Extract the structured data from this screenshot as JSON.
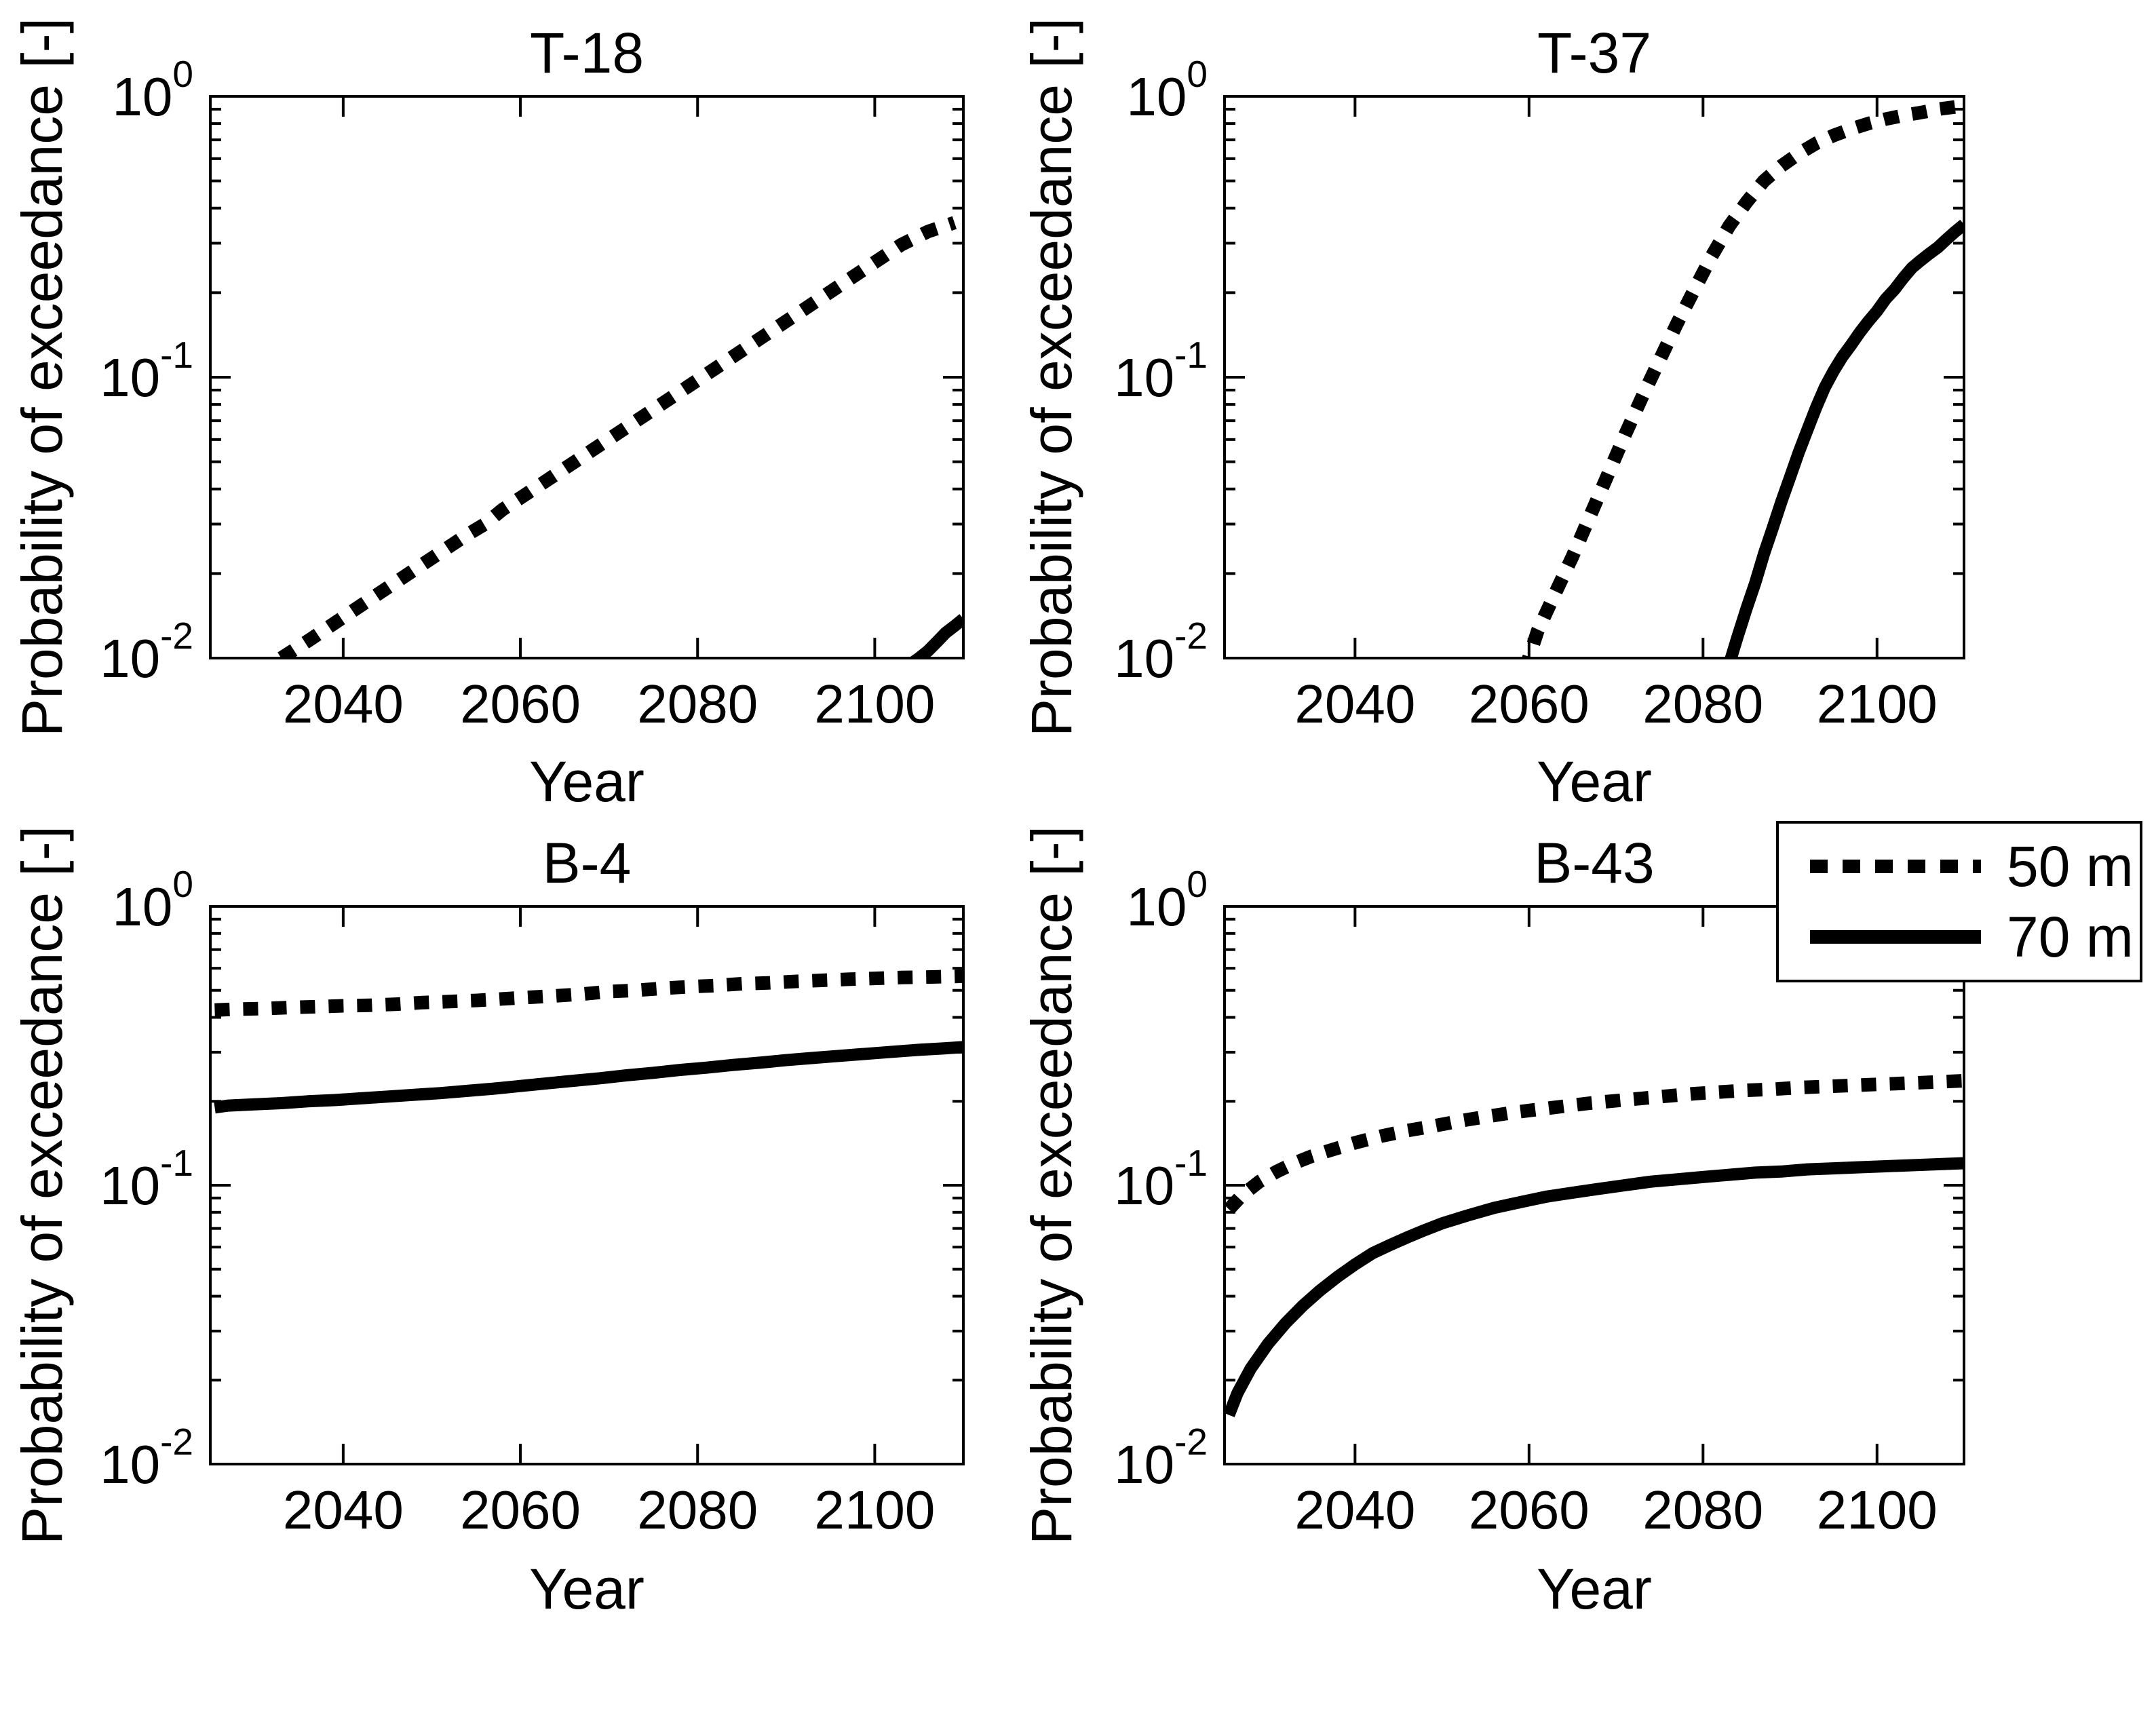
{
  "figure": {
    "background": "#ffffff",
    "line_color": "#000000"
  },
  "legend": {
    "position": "top-right-outside",
    "items": [
      {
        "label": "50 m",
        "style": "dotted"
      },
      {
        "label": "70 m",
        "style": "solid"
      }
    ]
  },
  "chart_data": [
    {
      "type": "line",
      "title": "T-18",
      "xlabel": "Year",
      "ylabel": "Probability of exceedance [-]",
      "xlim": [
        2025,
        2110
      ],
      "ylog_exponent_range": [
        -2,
        0
      ],
      "xticks": [
        2040,
        2060,
        2080,
        2100
      ],
      "ytick_exponents": [
        0,
        -1,
        -2
      ],
      "grid": false,
      "series": [
        {
          "name": "50 m",
          "style": "dotted",
          "points": [
            [
              2033,
              0.01
            ],
            [
              2036,
              0.0115
            ],
            [
              2039,
              0.0133
            ],
            [
              2042,
              0.0154
            ],
            [
              2045,
              0.0178
            ],
            [
              2048,
              0.0206
            ],
            [
              2051,
              0.0238
            ],
            [
              2054,
              0.0275
            ],
            [
              2056,
              0.03
            ],
            [
              2058,
              0.0338
            ],
            [
              2061,
              0.039
            ],
            [
              2064,
              0.0451
            ],
            [
              2067,
              0.0521
            ],
            [
              2070,
              0.0602
            ],
            [
              2073,
              0.0696
            ],
            [
              2076,
              0.0805
            ],
            [
              2079,
              0.093
            ],
            [
              2082,
              0.1075
            ],
            [
              2085,
              0.1243
            ],
            [
              2088,
              0.1437
            ],
            [
              2091,
              0.1661
            ],
            [
              2094,
              0.192
            ],
            [
              2097,
              0.2219
            ],
            [
              2100,
              0.2565
            ],
            [
              2103,
              0.2965
            ],
            [
              2106,
              0.33
            ],
            [
              2109,
              0.355
            ]
          ]
        },
        {
          "name": "70 m",
          "style": "solid",
          "points": [
            [
              2103.3,
              0.009
            ],
            [
              2104,
              0.0095
            ],
            [
              2105,
              0.01
            ],
            [
              2106,
              0.0106
            ],
            [
              2107,
              0.0114
            ],
            [
              2108,
              0.0123
            ],
            [
              2109,
              0.013
            ],
            [
              2110,
              0.0138
            ]
          ]
        }
      ]
    },
    {
      "type": "line",
      "title": "T-37",
      "xlabel": "Year",
      "ylabel": "Probability of exceedance [-]",
      "xlim": [
        2025,
        2110
      ],
      "ylog_exponent_range": [
        -2,
        0
      ],
      "xticks": [
        2040,
        2060,
        2080,
        2100
      ],
      "ytick_exponents": [
        0,
        -1,
        -2
      ],
      "grid": false,
      "series": [
        {
          "name": "50 m",
          "style": "dotted",
          "points": [
            [
              2059.5,
              0.009
            ],
            [
              2061,
              0.0125
            ],
            [
              2063,
              0.017
            ],
            [
              2065,
              0.023
            ],
            [
              2067,
              0.032
            ],
            [
              2069,
              0.0445
            ],
            [
              2071,
              0.062
            ],
            [
              2073,
              0.085
            ],
            [
              2075,
              0.115
            ],
            [
              2077,
              0.155
            ],
            [
              2079,
              0.205
            ],
            [
              2081,
              0.27
            ],
            [
              2083,
              0.345
            ],
            [
              2085,
              0.42
            ],
            [
              2087,
              0.5
            ],
            [
              2089,
              0.565
            ],
            [
              2091,
              0.625
            ],
            [
              2093,
              0.68
            ],
            [
              2095,
              0.725
            ],
            [
              2097,
              0.765
            ],
            [
              2099,
              0.8
            ],
            [
              2101,
              0.83
            ],
            [
              2103,
              0.855
            ],
            [
              2105,
              0.875
            ],
            [
              2107,
              0.9
            ],
            [
              2110,
              0.925
            ]
          ]
        },
        {
          "name": "70 m",
          "style": "solid",
          "points": [
            [
              2083,
              0.0095
            ],
            [
              2084,
              0.012
            ],
            [
              2085,
              0.015
            ],
            [
              2086,
              0.0185
            ],
            [
              2087,
              0.0235
            ],
            [
              2088,
              0.029
            ],
            [
              2089,
              0.036
            ],
            [
              2090,
              0.044
            ],
            [
              2091,
              0.054
            ],
            [
              2092,
              0.065
            ],
            [
              2093,
              0.078
            ],
            [
              2094,
              0.092
            ],
            [
              2095,
              0.105
            ],
            [
              2096,
              0.118
            ],
            [
              2097,
              0.13
            ],
            [
              2098,
              0.144
            ],
            [
              2099,
              0.158
            ],
            [
              2100,
              0.172
            ],
            [
              2101,
              0.19
            ],
            [
              2102,
              0.205
            ],
            [
              2103,
              0.225
            ],
            [
              2104,
              0.245
            ],
            [
              2105,
              0.26
            ],
            [
              2106,
              0.275
            ],
            [
              2107,
              0.29
            ],
            [
              2108,
              0.31
            ],
            [
              2109,
              0.33
            ],
            [
              2110,
              0.35
            ]
          ]
        }
      ]
    },
    {
      "type": "line",
      "title": "B-4",
      "xlabel": "Year",
      "ylabel": "Probability of exceedance [-]",
      "xlim": [
        2025,
        2110
      ],
      "ylog_exponent_range": [
        -2,
        0
      ],
      "xticks": [
        2040,
        2060,
        2080,
        2100
      ],
      "ytick_exponents": [
        0,
        -1,
        -2
      ],
      "grid": false,
      "series": [
        {
          "name": "50 m",
          "style": "dotted",
          "points": [
            [
              2025.5,
              0.425
            ],
            [
              2028,
              0.428
            ],
            [
              2031,
              0.43
            ],
            [
              2034,
              0.434
            ],
            [
              2037,
              0.437
            ],
            [
              2040,
              0.44
            ],
            [
              2043,
              0.442
            ],
            [
              2046,
              0.446
            ],
            [
              2049,
              0.452
            ],
            [
              2052,
              0.456
            ],
            [
              2055,
              0.46
            ],
            [
              2058,
              0.466
            ],
            [
              2061,
              0.472
            ],
            [
              2064,
              0.478
            ],
            [
              2067,
              0.485
            ],
            [
              2070,
              0.495
            ],
            [
              2073,
              0.5
            ],
            [
              2076,
              0.508
            ],
            [
              2079,
              0.515
            ],
            [
              2082,
              0.52
            ],
            [
              2085,
              0.528
            ],
            [
              2088,
              0.532
            ],
            [
              2091,
              0.538
            ],
            [
              2094,
              0.543
            ],
            [
              2097,
              0.548
            ],
            [
              2100,
              0.552
            ],
            [
              2103,
              0.556
            ],
            [
              2106,
              0.558
            ],
            [
              2110,
              0.562
            ]
          ]
        },
        {
          "name": "70 m",
          "style": "solid",
          "points": [
            [
              2025.5,
              0.19
            ],
            [
              2027,
              0.193
            ],
            [
              2030,
              0.195
            ],
            [
              2033,
              0.197
            ],
            [
              2036,
              0.2
            ],
            [
              2039,
              0.202
            ],
            [
              2042,
              0.205
            ],
            [
              2045,
              0.208
            ],
            [
              2048,
              0.211
            ],
            [
              2051,
              0.214
            ],
            [
              2054,
              0.218
            ],
            [
              2057,
              0.222
            ],
            [
              2060,
              0.227
            ],
            [
              2063,
              0.232
            ],
            [
              2066,
              0.237
            ],
            [
              2069,
              0.242
            ],
            [
              2072,
              0.248
            ],
            [
              2075,
              0.253
            ],
            [
              2078,
              0.259
            ],
            [
              2081,
              0.264
            ],
            [
              2084,
              0.27
            ],
            [
              2087,
              0.275
            ],
            [
              2090,
              0.281
            ],
            [
              2093,
              0.286
            ],
            [
              2096,
              0.291
            ],
            [
              2099,
              0.296
            ],
            [
              2102,
              0.301
            ],
            [
              2105,
              0.306
            ],
            [
              2108,
              0.31
            ],
            [
              2110,
              0.313
            ]
          ]
        }
      ]
    },
    {
      "type": "line",
      "title": "B-43",
      "xlabel": "Year",
      "ylabel": "Probability of exceedance [-]",
      "xlim": [
        2025,
        2110
      ],
      "ylog_exponent_range": [
        -2,
        0
      ],
      "xticks": [
        2040,
        2060,
        2080,
        2100
      ],
      "ytick_exponents": [
        0,
        -1,
        -2
      ],
      "grid": false,
      "series": [
        {
          "name": "50 m",
          "style": "dotted",
          "points": [
            [
              2025.5,
              0.082
            ],
            [
              2027,
              0.092
            ],
            [
              2029,
              0.103
            ],
            [
              2031,
              0.112
            ],
            [
              2033,
              0.12
            ],
            [
              2035,
              0.127
            ],
            [
              2037,
              0.133
            ],
            [
              2040,
              0.142
            ],
            [
              2043,
              0.15
            ],
            [
              2046,
              0.157
            ],
            [
              2049,
              0.163
            ],
            [
              2052,
              0.17
            ],
            [
              2055,
              0.176
            ],
            [
              2058,
              0.182
            ],
            [
              2061,
              0.187
            ],
            [
              2064,
              0.192
            ],
            [
              2067,
              0.197
            ],
            [
              2070,
              0.201
            ],
            [
              2073,
              0.205
            ],
            [
              2076,
              0.209
            ],
            [
              2079,
              0.213
            ],
            [
              2082,
              0.216
            ],
            [
              2085,
              0.219
            ],
            [
              2088,
              0.221
            ],
            [
              2091,
              0.224
            ],
            [
              2094,
              0.226
            ],
            [
              2097,
              0.228
            ],
            [
              2100,
              0.23
            ],
            [
              2103,
              0.232
            ],
            [
              2106,
              0.234
            ],
            [
              2110,
              0.237
            ]
          ]
        },
        {
          "name": "70 m",
          "style": "solid",
          "points": [
            [
              2025.5,
              0.015
            ],
            [
              2026.5,
              0.018
            ],
            [
              2028,
              0.022
            ],
            [
              2030,
              0.027
            ],
            [
              2032,
              0.032
            ],
            [
              2034,
              0.037
            ],
            [
              2036,
              0.042
            ],
            [
              2038,
              0.047
            ],
            [
              2040,
              0.052
            ],
            [
              2042,
              0.057
            ],
            [
              2044,
              0.061
            ],
            [
              2046,
              0.065
            ],
            [
              2048,
              0.069
            ],
            [
              2050,
              0.073
            ],
            [
              2053,
              0.078
            ],
            [
              2056,
              0.083
            ],
            [
              2059,
              0.087
            ],
            [
              2062,
              0.091
            ],
            [
              2065,
              0.094
            ],
            [
              2068,
              0.097
            ],
            [
              2071,
              0.1
            ],
            [
              2074,
              0.103
            ],
            [
              2077,
              0.105
            ],
            [
              2080,
              0.107
            ],
            [
              2083,
              0.109
            ],
            [
              2086,
              0.111
            ],
            [
              2089,
              0.112
            ],
            [
              2092,
              0.114
            ],
            [
              2095,
              0.115
            ],
            [
              2098,
              0.116
            ],
            [
              2101,
              0.117
            ],
            [
              2104,
              0.118
            ],
            [
              2107,
              0.119
            ],
            [
              2110,
              0.12
            ]
          ]
        }
      ]
    }
  ]
}
